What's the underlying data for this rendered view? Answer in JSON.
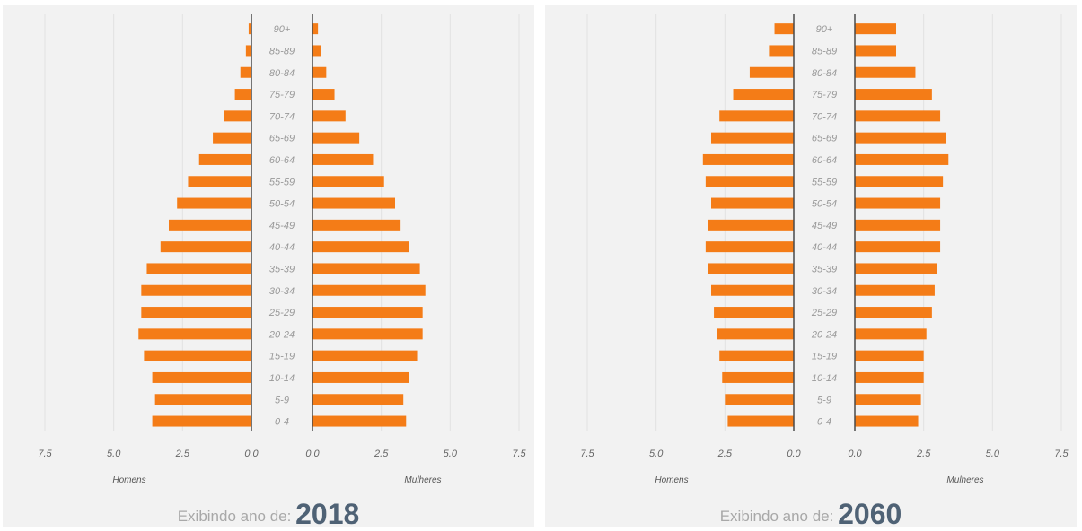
{
  "chart_data": [
    {
      "type": "bar",
      "orientation": "horizontal-pyramid",
      "year": "2018",
      "caption": "Exibindo ano de:",
      "left_label": "Homens",
      "right_label": "Mulheres",
      "categories": [
        "0-4",
        "5-9",
        "10-14",
        "15-19",
        "20-24",
        "25-29",
        "30-34",
        "35-39",
        "40-44",
        "45-49",
        "50-54",
        "55-59",
        "60-64",
        "65-69",
        "70-74",
        "75-79",
        "80-84",
        "85-89",
        "90+"
      ],
      "x_ticks_left": [
        "7.5",
        "5.0",
        "2.5",
        "0.0"
      ],
      "x_ticks_right": [
        "0.0",
        "2.5",
        "5.0",
        "7.5"
      ],
      "xlim": [
        0,
        7.5
      ],
      "bar_color": "#f47c17",
      "series": [
        {
          "name": "Homens",
          "values": [
            3.6,
            3.5,
            3.6,
            3.9,
            4.1,
            4.0,
            4.0,
            3.8,
            3.3,
            3.0,
            2.7,
            2.3,
            1.9,
            1.4,
            1.0,
            0.6,
            0.4,
            0.2,
            0.1
          ]
        },
        {
          "name": "Mulheres",
          "values": [
            3.4,
            3.3,
            3.5,
            3.8,
            4.0,
            4.0,
            4.1,
            3.9,
            3.5,
            3.2,
            3.0,
            2.6,
            2.2,
            1.7,
            1.2,
            0.8,
            0.5,
            0.3,
            0.2
          ]
        }
      ]
    },
    {
      "type": "bar",
      "orientation": "horizontal-pyramid",
      "year": "2060",
      "caption": "Exibindo ano de:",
      "left_label": "Homens",
      "right_label": "Mulheres",
      "categories": [
        "0-4",
        "5-9",
        "10-14",
        "15-19",
        "20-24",
        "25-29",
        "30-34",
        "35-39",
        "40-44",
        "45-49",
        "50-54",
        "55-59",
        "60-64",
        "65-69",
        "70-74",
        "75-79",
        "80-84",
        "85-89",
        "90+"
      ],
      "x_ticks_left": [
        "7.5",
        "5.0",
        "2.5",
        "0.0"
      ],
      "x_ticks_right": [
        "0.0",
        "2.5",
        "5.0",
        "7.5"
      ],
      "xlim": [
        0,
        7.5
      ],
      "bar_color": "#f47c17",
      "series": [
        {
          "name": "Homens",
          "values": [
            2.4,
            2.5,
            2.6,
            2.7,
            2.8,
            2.9,
            3.0,
            3.1,
            3.2,
            3.1,
            3.0,
            3.2,
            3.3,
            3.0,
            2.7,
            2.2,
            1.6,
            0.9,
            0.7
          ]
        },
        {
          "name": "Mulheres",
          "values": [
            2.3,
            2.4,
            2.5,
            2.5,
            2.6,
            2.8,
            2.9,
            3.0,
            3.1,
            3.1,
            3.1,
            3.2,
            3.4,
            3.3,
            3.1,
            2.8,
            2.2,
            1.5,
            1.5
          ]
        }
      ]
    }
  ]
}
